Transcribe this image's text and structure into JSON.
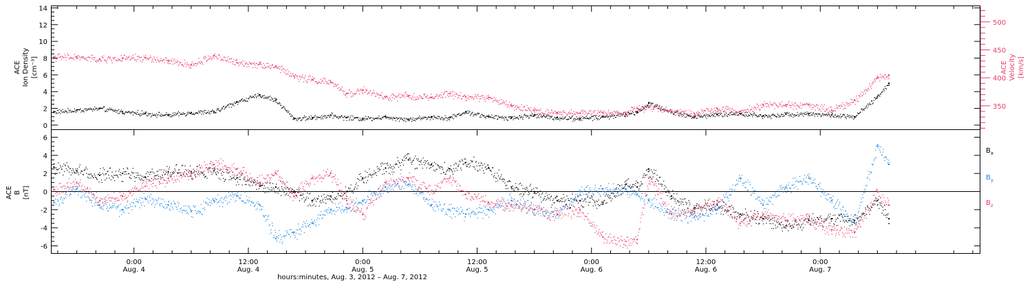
{
  "colors": {
    "black": "#000000",
    "blue": "#1e88e5",
    "red": "#ec3a64"
  },
  "chart_data": [
    {
      "type": "scatter",
      "panel": "top",
      "ylabel": [
        "ACE",
        "Ion Density",
        "[cm⁻³]"
      ],
      "ylabel_right": [
        "ACE",
        "Velocity",
        "[km/s]"
      ],
      "ylim": [
        -0.5,
        14.2
      ],
      "yticks": [
        "0",
        "2",
        "4",
        "6",
        "8",
        "10",
        "12",
        "14"
      ],
      "ylim_right": [
        308,
        528
      ],
      "yticks_right": [
        "350",
        "400",
        "450",
        "500"
      ],
      "series": [
        {
          "color": "black",
          "axis": "left",
          "x": [
            -0.35,
            -0.25,
            -0.15,
            -0.05,
            0.05,
            0.15,
            0.25,
            0.35,
            0.45,
            0.55,
            0.62,
            0.7,
            0.78,
            0.86,
            0.93,
            1.0,
            1.1,
            1.2,
            1.3,
            1.38,
            1.45,
            1.55,
            1.65,
            1.75,
            1.85,
            1.95,
            2.05,
            2.15,
            2.2,
            2.25,
            2.35,
            2.45,
            2.55,
            2.65,
            2.75,
            2.85,
            2.95,
            3.05,
            3.15,
            3.25,
            3.3
          ],
          "y": [
            1.6,
            1.8,
            2.0,
            1.6,
            1.4,
            1.2,
            1.5,
            1.6,
            2.8,
            3.6,
            3.0,
            0.8,
            0.9,
            1.2,
            0.9,
            0.8,
            1.0,
            0.7,
            1.0,
            0.9,
            1.6,
            1.0,
            0.9,
            1.2,
            0.9,
            0.8,
            1.0,
            1.3,
            1.6,
            2.6,
            1.6,
            1.0,
            1.3,
            1.4,
            1.1,
            1.3,
            1.4,
            1.2,
            1.0,
            3.4,
            5.0
          ]
        },
        {
          "color": "red",
          "axis": "right",
          "x": [
            -0.35,
            -0.25,
            -0.15,
            -0.05,
            0.05,
            0.15,
            0.25,
            0.35,
            0.45,
            0.55,
            0.62,
            0.7,
            0.78,
            0.86,
            0.93,
            1.0,
            1.1,
            1.2,
            1.3,
            1.38,
            1.45,
            1.55,
            1.65,
            1.75,
            1.85,
            1.95,
            2.05,
            2.15,
            2.2,
            2.25,
            2.35,
            2.45,
            2.55,
            2.65,
            2.75,
            2.85,
            2.95,
            3.05,
            3.15,
            3.25,
            3.3
          ],
          "y": [
            437,
            437,
            433,
            435,
            436,
            430,
            423,
            440,
            427,
            425,
            420,
            403,
            397,
            392,
            372,
            378,
            365,
            368,
            365,
            372,
            366,
            365,
            350,
            342,
            338,
            337,
            338,
            338,
            345,
            348,
            340,
            336,
            345,
            340,
            352,
            352,
            352,
            342,
            360,
            400,
            405
          ]
        }
      ]
    },
    {
      "type": "scatter",
      "panel": "bottom",
      "ylabel": [
        "ACE",
        "B",
        "[nT]"
      ],
      "ylim": [
        -6.8,
        6.8
      ],
      "yticks": [
        "-6",
        "-4",
        "-2",
        "0",
        "2",
        "4",
        "6"
      ],
      "series": [
        {
          "name": "Bx",
          "color": "black",
          "x": [
            -0.35,
            -0.25,
            -0.15,
            -0.05,
            0.05,
            0.15,
            0.25,
            0.35,
            0.45,
            0.55,
            0.62,
            0.7,
            0.78,
            0.86,
            0.93,
            1.0,
            1.1,
            1.2,
            1.3,
            1.38,
            1.45,
            1.55,
            1.65,
            1.75,
            1.85,
            1.95,
            2.05,
            2.15,
            2.2,
            2.25,
            2.35,
            2.45,
            2.55,
            2.65,
            2.75,
            2.85,
            2.95,
            3.05,
            3.15,
            3.25,
            3.3
          ],
          "y": [
            2.7,
            2.3,
            1.8,
            2.0,
            1.6,
            2.2,
            2.2,
            2.3,
            1.5,
            0.6,
            0.5,
            0.0,
            -1.0,
            -0.5,
            0.0,
            1.5,
            2.6,
            3.5,
            3.0,
            2.5,
            3.2,
            2.6,
            0.5,
            0.0,
            -1.0,
            -1.0,
            -1.2,
            0.8,
            0.5,
            2.5,
            -0.5,
            -1.8,
            -1.5,
            -2.5,
            -3.0,
            -3.8,
            -3.2,
            -3.0,
            -3.2,
            -1.0,
            -3.0
          ]
        },
        {
          "name": "By",
          "color": "blue",
          "x": [
            -0.35,
            -0.25,
            -0.15,
            -0.05,
            0.05,
            0.15,
            0.25,
            0.35,
            0.45,
            0.55,
            0.62,
            0.7,
            0.78,
            0.86,
            0.93,
            1.0,
            1.1,
            1.2,
            1.3,
            1.38,
            1.45,
            1.55,
            1.65,
            1.75,
            1.85,
            1.95,
            2.05,
            2.15,
            2.2,
            2.25,
            2.35,
            2.45,
            2.55,
            2.65,
            2.75,
            2.85,
            2.95,
            3.05,
            3.15,
            3.25,
            3.3
          ],
          "y": [
            -1.2,
            0.3,
            -1.5,
            -2.0,
            -0.8,
            -1.5,
            -2.2,
            -1.0,
            -0.5,
            -1.5,
            -5.2,
            -4.5,
            -3.5,
            -2.0,
            -1.8,
            -1.0,
            0.5,
            0.8,
            -1.5,
            -2.0,
            -2.5,
            -2.0,
            -1.0,
            -2.0,
            -2.5,
            0.0,
            0.3,
            0.3,
            -0.3,
            -1.0,
            -2.5,
            -2.8,
            -2.0,
            1.5,
            -1.5,
            0.5,
            1.5,
            -1.0,
            -3.5,
            5.0,
            3.0
          ]
        },
        {
          "name": "Bz",
          "color": "red",
          "x": [
            -0.35,
            -0.25,
            -0.15,
            -0.05,
            0.05,
            0.15,
            0.25,
            0.35,
            0.45,
            0.55,
            0.62,
            0.7,
            0.78,
            0.86,
            0.93,
            1.0,
            1.1,
            1.2,
            1.3,
            1.38,
            1.45,
            1.55,
            1.65,
            1.75,
            1.85,
            1.95,
            2.05,
            2.15,
            2.2,
            2.25,
            2.35,
            2.45,
            2.55,
            2.65,
            2.75,
            2.85,
            2.95,
            3.05,
            3.15,
            3.25,
            3.3
          ],
          "y": [
            0.2,
            1.0,
            -1.0,
            -0.5,
            0.6,
            1.5,
            2.0,
            3.0,
            2.5,
            1.0,
            2.0,
            -0.5,
            1.5,
            2.0,
            -1.0,
            -2.5,
            1.0,
            1.5,
            0.0,
            1.5,
            -0.3,
            -1.2,
            -1.5,
            -2.0,
            -2.5,
            -2.0,
            -5.0,
            -5.5,
            -5.3,
            1.5,
            -2.5,
            -2.0,
            -1.0,
            -3.5,
            -2.5,
            -3.2,
            -3.0,
            -4.2,
            -4.5,
            0.0,
            -1.5
          ]
        }
      ],
      "legend": [
        "B",
        "B",
        "B"
      ],
      "legend_subs": [
        "x",
        "y",
        "z"
      ]
    }
  ],
  "x_axis": {
    "xlim": [
      -0.36,
      3.7
    ],
    "ticks": [
      {
        "x": 0,
        "time": "0:00",
        "day": "Aug. 4"
      },
      {
        "x": 0.5,
        "time": "12:00",
        "day": "Aug. 4"
      },
      {
        "x": 1,
        "time": "0:00",
        "day": "Aug. 5"
      },
      {
        "x": 1.5,
        "time": "12:00",
        "day": "Aug. 5"
      },
      {
        "x": 2,
        "time": "0:00",
        "day": "Aug. 6"
      },
      {
        "x": 2.5,
        "time": "12:00",
        "day": "Aug. 6"
      },
      {
        "x": 3,
        "time": "0:00",
        "day": "Aug. 7"
      }
    ],
    "xlabel": "hours:minutes, Aug.  3, 2012 – Aug.  7, 2012"
  }
}
